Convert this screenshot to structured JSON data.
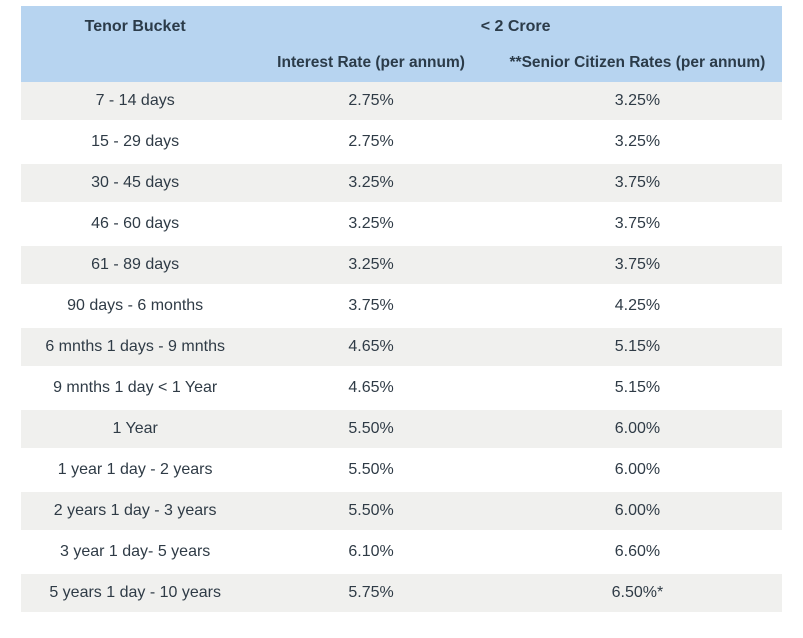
{
  "table": {
    "header": {
      "tenor_label": "Tenor Bucket",
      "group_label": "< 2 Crore",
      "col_interest": "Interest Rate (per annum)",
      "col_senior": "**Senior Citizen Rates (per annum)"
    },
    "colors": {
      "header_bg": "#b7d4f0",
      "row_odd_bg": "#f0f0ee",
      "row_even_bg": "#ffffff",
      "text": "#2f3b46",
      "header_text": "#2b3b49"
    },
    "rows": [
      {
        "tenor": "7 - 14 days",
        "rate": "2.75%",
        "senior": "3.25%"
      },
      {
        "tenor": "15 - 29 days",
        "rate": "2.75%",
        "senior": "3.25%"
      },
      {
        "tenor": "30 - 45 days",
        "rate": "3.25%",
        "senior": "3.75%"
      },
      {
        "tenor": "46 - 60 days",
        "rate": "3.25%",
        "senior": "3.75%"
      },
      {
        "tenor": "61 - 89 days",
        "rate": "3.25%",
        "senior": "3.75%"
      },
      {
        "tenor": "90 days - 6 months",
        "rate": "3.75%",
        "senior": "4.25%"
      },
      {
        "tenor": "6 mnths 1 days - 9 mnths",
        "rate": "4.65%",
        "senior": "5.15%"
      },
      {
        "tenor": "9 mnths 1 day < 1 Year",
        "rate": "4.65%",
        "senior": "5.15%"
      },
      {
        "tenor": "1 Year",
        "rate": "5.50%",
        "senior": "6.00%"
      },
      {
        "tenor": "1 year 1 day - 2 years",
        "rate": "5.50%",
        "senior": "6.00%"
      },
      {
        "tenor": "2 years 1 day - 3 years",
        "rate": "5.50%",
        "senior": "6.00%"
      },
      {
        "tenor": "3 year 1 day- 5 years",
        "rate": "6.10%",
        "senior": "6.60%"
      },
      {
        "tenor": "5 years 1 day - 10 years",
        "rate": "5.75%",
        "senior": "6.50%*"
      }
    ]
  }
}
